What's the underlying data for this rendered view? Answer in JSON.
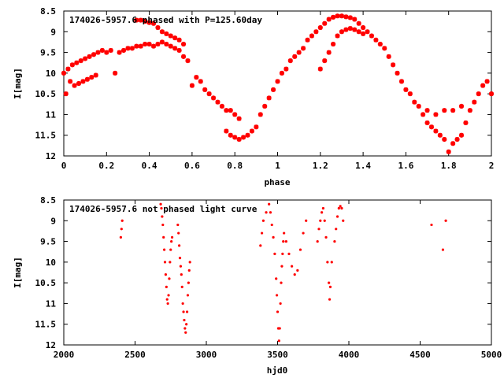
{
  "colors": {
    "point": "#ff0000",
    "frame": "#000000",
    "background": "#ffffff"
  },
  "chart_data": [
    {
      "type": "scatter",
      "title": "174026-5957.6 phased with P=125.60day",
      "xlabel": "phase",
      "ylabel": "I[mag]",
      "xlim": [
        0,
        2
      ],
      "ylim": [
        12,
        8.5
      ],
      "y_inverted": true,
      "grid": false,
      "legend": "none",
      "xticks": [
        "0",
        "0.2",
        "0.4",
        "0.6",
        "0.8",
        "1",
        "1.2",
        "1.4",
        "1.6",
        "1.8",
        "2"
      ],
      "xtick_values": [
        0,
        0.2,
        0.4,
        0.6,
        0.8,
        1.0,
        1.2,
        1.4,
        1.6,
        1.8,
        2.0
      ],
      "yticks": [
        "8.5",
        "9",
        "9.5",
        "10",
        "10.5",
        "11",
        "11.5",
        "12"
      ],
      "ytick_values": [
        8.5,
        9,
        9.5,
        10,
        10.5,
        11,
        11.5,
        12
      ],
      "marker": "star",
      "points": [
        [
          0.0,
          10.0
        ],
        [
          0.01,
          10.5
        ],
        [
          0.02,
          9.9
        ],
        [
          0.03,
          10.2
        ],
        [
          0.04,
          9.8
        ],
        [
          0.05,
          10.3
        ],
        [
          0.06,
          9.75
        ],
        [
          0.07,
          10.25
        ],
        [
          0.08,
          9.7
        ],
        [
          0.09,
          10.2
        ],
        [
          0.1,
          9.65
        ],
        [
          0.11,
          10.15
        ],
        [
          0.12,
          9.6
        ],
        [
          0.13,
          10.1
        ],
        [
          0.14,
          9.55
        ],
        [
          0.15,
          10.05
        ],
        [
          0.16,
          9.5
        ],
        [
          0.18,
          9.45
        ],
        [
          0.2,
          9.5
        ],
        [
          0.22,
          9.45
        ],
        [
          0.24,
          10.0
        ],
        [
          0.26,
          9.5
        ],
        [
          0.28,
          9.45
        ],
        [
          0.3,
          9.4
        ],
        [
          0.32,
          9.4
        ],
        [
          0.34,
          9.35
        ],
        [
          0.36,
          9.35
        ],
        [
          0.38,
          9.3
        ],
        [
          0.4,
          9.3
        ],
        [
          0.42,
          9.35
        ],
        [
          0.44,
          9.3
        ],
        [
          0.46,
          9.25
        ],
        [
          0.48,
          9.3
        ],
        [
          0.5,
          9.35
        ],
        [
          0.52,
          9.4
        ],
        [
          0.54,
          9.45
        ],
        [
          0.56,
          9.6
        ],
        [
          0.58,
          9.7
        ],
        [
          0.34,
          8.72
        ],
        [
          0.36,
          8.72
        ],
        [
          0.38,
          8.75
        ],
        [
          0.4,
          8.78
        ],
        [
          0.42,
          8.8
        ],
        [
          0.44,
          8.9
        ],
        [
          0.46,
          9.0
        ],
        [
          0.48,
          9.05
        ],
        [
          0.5,
          9.1
        ],
        [
          0.52,
          9.15
        ],
        [
          0.54,
          9.2
        ],
        [
          0.56,
          9.3
        ],
        [
          0.6,
          10.3
        ],
        [
          0.62,
          10.1
        ],
        [
          0.64,
          10.2
        ],
        [
          0.66,
          10.4
        ],
        [
          0.68,
          10.5
        ],
        [
          0.7,
          10.6
        ],
        [
          0.72,
          10.7
        ],
        [
          0.74,
          10.8
        ],
        [
          0.76,
          10.9
        ],
        [
          0.78,
          10.9
        ],
        [
          0.8,
          11.0
        ],
        [
          0.82,
          11.1
        ],
        [
          0.76,
          11.4
        ],
        [
          0.78,
          11.5
        ],
        [
          0.8,
          11.55
        ],
        [
          0.82,
          11.6
        ],
        [
          0.84,
          11.55
        ],
        [
          0.86,
          11.5
        ],
        [
          0.88,
          11.4
        ],
        [
          0.9,
          11.3
        ],
        [
          0.92,
          11.0
        ],
        [
          0.94,
          10.8
        ],
        [
          0.96,
          10.6
        ],
        [
          0.98,
          10.4
        ],
        [
          1.0,
          10.2
        ],
        [
          1.02,
          10.0
        ],
        [
          1.04,
          9.9
        ],
        [
          1.06,
          9.7
        ],
        [
          1.08,
          9.6
        ],
        [
          1.1,
          9.5
        ],
        [
          1.12,
          9.4
        ],
        [
          1.14,
          9.2
        ],
        [
          1.16,
          9.1
        ],
        [
          1.18,
          9.0
        ],
        [
          1.2,
          8.9
        ],
        [
          1.22,
          8.8
        ],
        [
          1.24,
          8.7
        ],
        [
          1.26,
          8.65
        ],
        [
          1.28,
          8.62
        ],
        [
          1.3,
          8.62
        ],
        [
          1.32,
          8.64
        ],
        [
          1.34,
          8.66
        ],
        [
          1.36,
          8.7
        ],
        [
          1.38,
          8.8
        ],
        [
          1.4,
          8.9
        ],
        [
          1.42,
          9.0
        ],
        [
          1.44,
          9.1
        ],
        [
          1.46,
          9.2
        ],
        [
          1.48,
          9.3
        ],
        [
          1.5,
          9.4
        ],
        [
          1.52,
          9.6
        ],
        [
          1.54,
          9.8
        ],
        [
          1.56,
          10.0
        ],
        [
          1.58,
          10.2
        ],
        [
          1.6,
          10.4
        ],
        [
          1.62,
          10.5
        ],
        [
          1.64,
          10.7
        ],
        [
          1.66,
          10.8
        ],
        [
          1.68,
          11.0
        ],
        [
          1.7,
          11.2
        ],
        [
          1.72,
          11.3
        ],
        [
          1.74,
          11.4
        ],
        [
          1.76,
          11.5
        ],
        [
          1.78,
          11.6
        ],
        [
          1.8,
          11.9
        ],
        [
          1.82,
          11.7
        ],
        [
          1.84,
          11.6
        ],
        [
          1.86,
          11.5
        ],
        [
          1.88,
          11.2
        ],
        [
          1.9,
          10.9
        ],
        [
          1.92,
          10.7
        ],
        [
          1.94,
          10.5
        ],
        [
          1.96,
          10.3
        ],
        [
          1.98,
          10.2
        ],
        [
          2.0,
          10.5
        ],
        [
          1.2,
          9.9
        ],
        [
          1.22,
          9.7
        ],
        [
          1.24,
          9.5
        ],
        [
          1.26,
          9.3
        ],
        [
          1.28,
          9.1
        ],
        [
          1.3,
          9.0
        ],
        [
          1.32,
          8.95
        ],
        [
          1.34,
          8.92
        ],
        [
          1.36,
          8.95
        ],
        [
          1.38,
          9.0
        ],
        [
          1.4,
          9.05
        ],
        [
          1.7,
          10.9
        ],
        [
          1.74,
          11.0
        ],
        [
          1.78,
          10.9
        ],
        [
          1.82,
          10.9
        ],
        [
          1.86,
          10.8
        ]
      ]
    },
    {
      "type": "scatter",
      "title": "174026-5957.6 not phased light curve",
      "xlabel": "hjd0",
      "ylabel": "I[mag]",
      "xlim": [
        2000,
        5000
      ],
      "ylim": [
        12,
        8.5
      ],
      "y_inverted": true,
      "grid": false,
      "legend": "none",
      "xticks": [
        "2000",
        "2500",
        "3000",
        "3500",
        "4000",
        "4500",
        "5000"
      ],
      "xtick_values": [
        2000,
        2500,
        3000,
        3500,
        4000,
        4500,
        5000
      ],
      "yticks": [
        "8.5",
        "9",
        "9.5",
        "10",
        "10.5",
        "11",
        "11.5",
        "12"
      ],
      "ytick_values": [
        8.5,
        9,
        9.5,
        10,
        10.5,
        11,
        11.5,
        12
      ],
      "marker": "dot",
      "points": [
        [
          2400,
          9.4
        ],
        [
          2405,
          9.2
        ],
        [
          2410,
          9.0
        ],
        [
          2680,
          8.6
        ],
        [
          2685,
          8.7
        ],
        [
          2690,
          8.9
        ],
        [
          2695,
          9.1
        ],
        [
          2700,
          9.4
        ],
        [
          2705,
          9.7
        ],
        [
          2710,
          10.0
        ],
        [
          2715,
          10.3
        ],
        [
          2720,
          10.6
        ],
        [
          2725,
          10.9
        ],
        [
          2730,
          11.0
        ],
        [
          2735,
          10.8
        ],
        [
          2740,
          10.4
        ],
        [
          2745,
          10.0
        ],
        [
          2750,
          9.7
        ],
        [
          2755,
          9.5
        ],
        [
          2760,
          9.4
        ],
        [
          2800,
          9.1
        ],
        [
          2805,
          9.3
        ],
        [
          2810,
          9.6
        ],
        [
          2815,
          9.9
        ],
        [
          2820,
          10.1
        ],
        [
          2825,
          10.3
        ],
        [
          2830,
          10.6
        ],
        [
          2835,
          11.0
        ],
        [
          2840,
          11.2
        ],
        [
          2845,
          11.4
        ],
        [
          2850,
          11.6
        ],
        [
          2855,
          11.7
        ],
        [
          2860,
          11.5
        ],
        [
          2865,
          11.2
        ],
        [
          2870,
          10.8
        ],
        [
          2875,
          10.5
        ],
        [
          2880,
          10.2
        ],
        [
          2885,
          10.0
        ],
        [
          3380,
          9.6
        ],
        [
          3390,
          9.3
        ],
        [
          3400,
          9.0
        ],
        [
          3420,
          8.8
        ],
        [
          3440,
          8.6
        ],
        [
          3450,
          8.8
        ],
        [
          3460,
          9.1
        ],
        [
          3470,
          9.4
        ],
        [
          3480,
          9.8
        ],
        [
          3490,
          10.4
        ],
        [
          3495,
          10.8
        ],
        [
          3500,
          11.2
        ],
        [
          3505,
          11.6
        ],
        [
          3510,
          11.9
        ],
        [
          3515,
          11.6
        ],
        [
          3520,
          11.0
        ],
        [
          3525,
          10.5
        ],
        [
          3530,
          10.1
        ],
        [
          3535,
          9.8
        ],
        [
          3540,
          9.5
        ],
        [
          3545,
          9.3
        ],
        [
          3560,
          9.5
        ],
        [
          3580,
          9.8
        ],
        [
          3600,
          10.1
        ],
        [
          3620,
          10.3
        ],
        [
          3640,
          10.2
        ],
        [
          3660,
          9.7
        ],
        [
          3680,
          9.3
        ],
        [
          3700,
          9.0
        ],
        [
          3780,
          9.5
        ],
        [
          3790,
          9.2
        ],
        [
          3800,
          9.0
        ],
        [
          3810,
          8.8
        ],
        [
          3820,
          8.7
        ],
        [
          3830,
          9.0
        ],
        [
          3840,
          9.4
        ],
        [
          3850,
          10.0
        ],
        [
          3860,
          10.5
        ],
        [
          3865,
          10.9
        ],
        [
          3870,
          10.6
        ],
        [
          3880,
          10.0
        ],
        [
          3900,
          9.5
        ],
        [
          3910,
          9.2
        ],
        [
          3920,
          8.9
        ],
        [
          3930,
          8.7
        ],
        [
          3940,
          8.65
        ],
        [
          3950,
          8.7
        ],
        [
          3960,
          9.0
        ],
        [
          4580,
          9.1
        ],
        [
          4660,
          9.7
        ],
        [
          4680,
          9.0
        ]
      ]
    }
  ]
}
